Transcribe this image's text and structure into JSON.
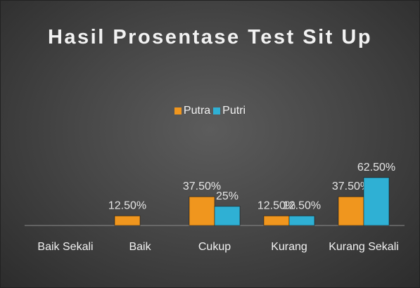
{
  "chart_data": {
    "type": "bar",
    "title": "Hasil Prosentase Test Sit Up",
    "categories": [
      "Baik Sekali",
      "Baik",
      "Cukup",
      "Kurang",
      "Kurang Sekali"
    ],
    "series": [
      {
        "name": "Putra",
        "color": "#f0961e",
        "values": [
          0,
          12.5,
          37.5,
          12.5,
          37.5
        ],
        "value_labels": [
          null,
          "12.50%",
          "37.50%",
          "12.50%",
          "37.50%"
        ]
      },
      {
        "name": "Putri",
        "color": "#2fb0d4",
        "values": [
          0,
          0,
          25,
          12.5,
          62.5
        ],
        "value_labels": [
          null,
          null,
          "25%",
          "12.50%",
          "62.50%"
        ]
      }
    ],
    "legend": "top"
  }
}
